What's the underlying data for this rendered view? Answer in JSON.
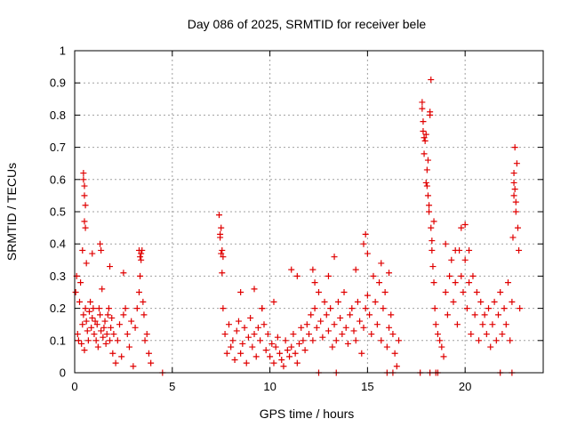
{
  "chart_data": {
    "type": "scatter",
    "title": "Day 086 of 2025, SRMTID for receiver bele",
    "xlabel": "GPS time / hours",
    "ylabel": "SRMTID / TECUs",
    "xlim": [
      0,
      24
    ],
    "ylim": [
      0,
      1
    ],
    "xticks": [
      0,
      5,
      10,
      15,
      20
    ],
    "yticks": [
      0,
      0.1,
      0.2,
      0.3,
      0.4,
      0.5,
      0.6,
      0.7,
      0.8,
      0.9,
      1
    ],
    "ytick_labels": [
      "0",
      "0.1",
      "0.2",
      "0.3",
      "0.4",
      "0.5",
      "0.6",
      "0.7",
      "0.8",
      "0.9",
      "1"
    ],
    "grid": true,
    "marker": "+",
    "color": "#e00000",
    "series": [
      {
        "name": "SRMTID",
        "x": [
          0.05,
          0.1,
          0.15,
          0.2,
          0.25,
          0.3,
          0.35,
          0.4,
          0.45,
          0.5,
          0.55,
          0.6,
          0.65,
          0.7,
          0.75,
          0.8,
          0.85,
          0.9,
          0.95,
          1.0,
          1.05,
          1.1,
          1.15,
          1.2,
          1.25,
          1.3,
          1.35,
          1.4,
          1.45,
          1.5,
          1.55,
          1.6,
          1.65,
          1.7,
          1.75,
          1.8,
          1.85,
          1.9,
          1.95,
          2.0,
          2.1,
          2.2,
          2.3,
          2.4,
          2.5,
          2.6,
          2.7,
          2.8,
          2.9,
          3.0,
          3.1,
          3.2,
          3.3,
          3.35,
          3.4,
          3.45,
          3.5,
          3.55,
          3.6,
          3.7,
          3.8,
          3.9,
          0.45,
          0.5,
          0.5,
          0.55,
          0.4,
          0.45,
          0.5,
          0.55,
          0.6,
          0.9,
          1.3,
          1.35,
          1.8,
          2.5,
          3.3,
          3.4,
          3.35,
          7.4,
          7.45,
          7.5,
          7.55,
          7.6,
          7.7,
          7.8,
          7.9,
          8.0,
          8.1,
          8.2,
          8.3,
          8.4,
          8.5,
          8.6,
          8.7,
          8.8,
          8.9,
          9.0,
          9.1,
          9.2,
          9.3,
          9.4,
          9.5,
          9.6,
          9.7,
          9.8,
          9.9,
          10.0,
          10.1,
          10.2,
          10.3,
          10.4,
          10.5,
          10.6,
          10.7,
          10.8,
          10.9,
          11.0,
          11.1,
          11.2,
          11.3,
          11.4,
          11.5,
          11.6,
          11.7,
          11.8,
          11.9,
          12.0,
          12.1,
          12.2,
          12.3,
          12.4,
          12.5,
          12.6,
          12.7,
          12.8,
          12.9,
          13.0,
          13.1,
          13.2,
          13.3,
          13.4,
          13.5,
          13.6,
          13.7,
          13.8,
          13.9,
          14.0,
          14.1,
          14.2,
          14.3,
          14.4,
          14.5,
          14.6,
          14.7,
          14.8,
          14.9,
          15.0,
          15.1,
          15.2,
          15.3,
          15.4,
          15.5,
          15.6,
          15.7,
          15.8,
          15.9,
          16.0,
          16.1,
          16.2,
          16.3,
          16.4,
          16.5,
          16.6,
          7.5,
          7.55,
          7.45,
          7.6,
          8.5,
          9.2,
          9.6,
          10.2,
          11.1,
          11.4,
          12.2,
          12.3,
          13.0,
          13.3,
          14.4,
          14.8,
          14.9,
          15.0,
          15.7,
          16.1,
          17.8,
          17.85,
          17.9,
          17.95,
          18.0,
          18.05,
          18.1,
          18.15,
          18.2,
          18.25,
          18.3,
          18.35,
          18.4,
          18.45,
          18.5,
          18.6,
          18.7,
          18.8,
          18.9,
          19.0,
          19.1,
          19.2,
          19.3,
          19.4,
          19.5,
          19.6,
          19.7,
          19.8,
          19.9,
          20.0,
          20.1,
          20.2,
          20.3,
          20.4,
          20.5,
          20.6,
          20.7,
          20.8,
          20.9,
          21.0,
          21.1,
          21.2,
          21.3,
          21.4,
          21.5,
          21.6,
          21.7,
          21.8,
          21.9,
          22.0,
          22.1,
          22.2,
          22.3,
          22.4,
          22.45,
          22.5,
          22.55,
          22.6,
          22.65,
          22.7,
          22.75,
          22.8,
          17.8,
          17.85,
          17.9,
          18.0,
          18.05,
          18.1,
          18.15,
          18.2,
          18.25,
          18.4,
          18.3,
          19.0,
          19.5,
          19.8,
          20.0,
          20.2,
          22.5,
          22.55,
          22.6,
          22.5,
          13.4,
          16.0,
          16.3,
          17.7,
          18.2,
          18.5,
          18.6,
          22.4,
          4.5,
          12.5,
          21.8
        ],
        "y": [
          0.25,
          0.3,
          0.12,
          0.1,
          0.22,
          0.28,
          0.09,
          0.15,
          0.18,
          0.07,
          0.2,
          0.16,
          0.13,
          0.1,
          0.19,
          0.22,
          0.14,
          0.17,
          0.2,
          0.12,
          0.16,
          0.1,
          0.15,
          0.08,
          0.2,
          0.18,
          0.13,
          0.26,
          0.11,
          0.14,
          0.16,
          0.09,
          0.12,
          0.18,
          0.2,
          0.1,
          0.14,
          0.17,
          0.06,
          0.12,
          0.03,
          0.1,
          0.15,
          0.05,
          0.18,
          0.2,
          0.12,
          0.08,
          0.16,
          0.02,
          0.14,
          0.2,
          0.25,
          0.3,
          0.35,
          0.38,
          0.22,
          0.18,
          0.1,
          0.12,
          0.06,
          0.03,
          0.6,
          0.55,
          0.47,
          0.52,
          0.38,
          0.62,
          0.58,
          0.45,
          0.34,
          0.37,
          0.4,
          0.38,
          0.33,
          0.31,
          0.38,
          0.37,
          0.36,
          0.49,
          0.43,
          0.37,
          0.31,
          0.2,
          0.12,
          0.06,
          0.15,
          0.08,
          0.1,
          0.04,
          0.13,
          0.16,
          0.06,
          0.09,
          0.14,
          0.03,
          0.11,
          0.17,
          0.08,
          0.12,
          0.05,
          0.14,
          0.1,
          0.2,
          0.15,
          0.07,
          0.12,
          0.05,
          0.09,
          0.03,
          0.08,
          0.11,
          0.06,
          0.04,
          0.02,
          0.1,
          0.07,
          0.05,
          0.08,
          0.12,
          0.06,
          0.03,
          0.09,
          0.14,
          0.1,
          0.07,
          0.15,
          0.12,
          0.18,
          0.1,
          0.2,
          0.14,
          0.25,
          0.16,
          0.11,
          0.22,
          0.18,
          0.13,
          0.2,
          0.08,
          0.15,
          0.1,
          0.22,
          0.17,
          0.12,
          0.25,
          0.14,
          0.09,
          0.18,
          0.2,
          0.13,
          0.1,
          0.22,
          0.16,
          0.06,
          0.14,
          0.2,
          0.24,
          0.18,
          0.12,
          0.3,
          0.22,
          0.15,
          0.28,
          0.1,
          0.2,
          0.25,
          0.08,
          0.14,
          0.18,
          0.12,
          0.06,
          0.02,
          0.1,
          0.45,
          0.38,
          0.42,
          0.36,
          0.25,
          0.26,
          0.2,
          0.22,
          0.32,
          0.3,
          0.32,
          0.28,
          0.3,
          0.36,
          0.32,
          0.4,
          0.43,
          0.37,
          0.34,
          0.31,
          0.84,
          0.75,
          0.68,
          0.72,
          0.59,
          0.63,
          0.55,
          0.5,
          0.8,
          0.45,
          0.38,
          0.33,
          0.28,
          0.2,
          0.15,
          0.12,
          0.1,
          0.08,
          0.05,
          0.25,
          0.18,
          0.3,
          0.35,
          0.22,
          0.28,
          0.15,
          0.38,
          0.3,
          0.25,
          0.35,
          0.2,
          0.28,
          0.12,
          0.3,
          0.18,
          0.25,
          0.1,
          0.22,
          0.15,
          0.18,
          0.12,
          0.2,
          0.08,
          0.15,
          0.22,
          0.1,
          0.18,
          0.25,
          0.12,
          0.2,
          0.15,
          0.28,
          0.1,
          0.22,
          0.42,
          0.55,
          0.57,
          0.5,
          0.65,
          0.45,
          0.38,
          0.2,
          0.82,
          0.78,
          0.73,
          0.74,
          0.58,
          0.66,
          0.52,
          0.81,
          0.91,
          0.47,
          0.41,
          0.4,
          0.38,
          0.45,
          0.46,
          0.38,
          0.62,
          0.7,
          0.53,
          0.59,
          0,
          0,
          0,
          0,
          0,
          0,
          0,
          0,
          0,
          0,
          0
        ]
      }
    ]
  }
}
